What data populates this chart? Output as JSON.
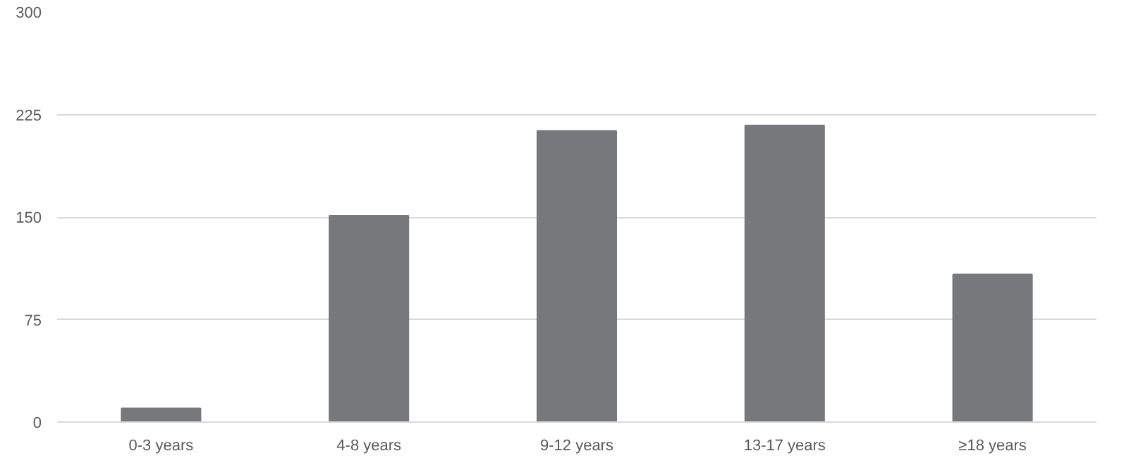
{
  "chart_data": {
    "type": "bar",
    "categories": [
      "0-3 years",
      "4-8 years",
      "9-12 years",
      "13-17 years",
      "≥18 years"
    ],
    "values": [
      10,
      151,
      213,
      217,
      108
    ],
    "color": "#77787b",
    "ylim": [
      0,
      300
    ],
    "yticks": [
      0,
      75,
      150,
      225,
      300
    ],
    "grid": "y"
  }
}
